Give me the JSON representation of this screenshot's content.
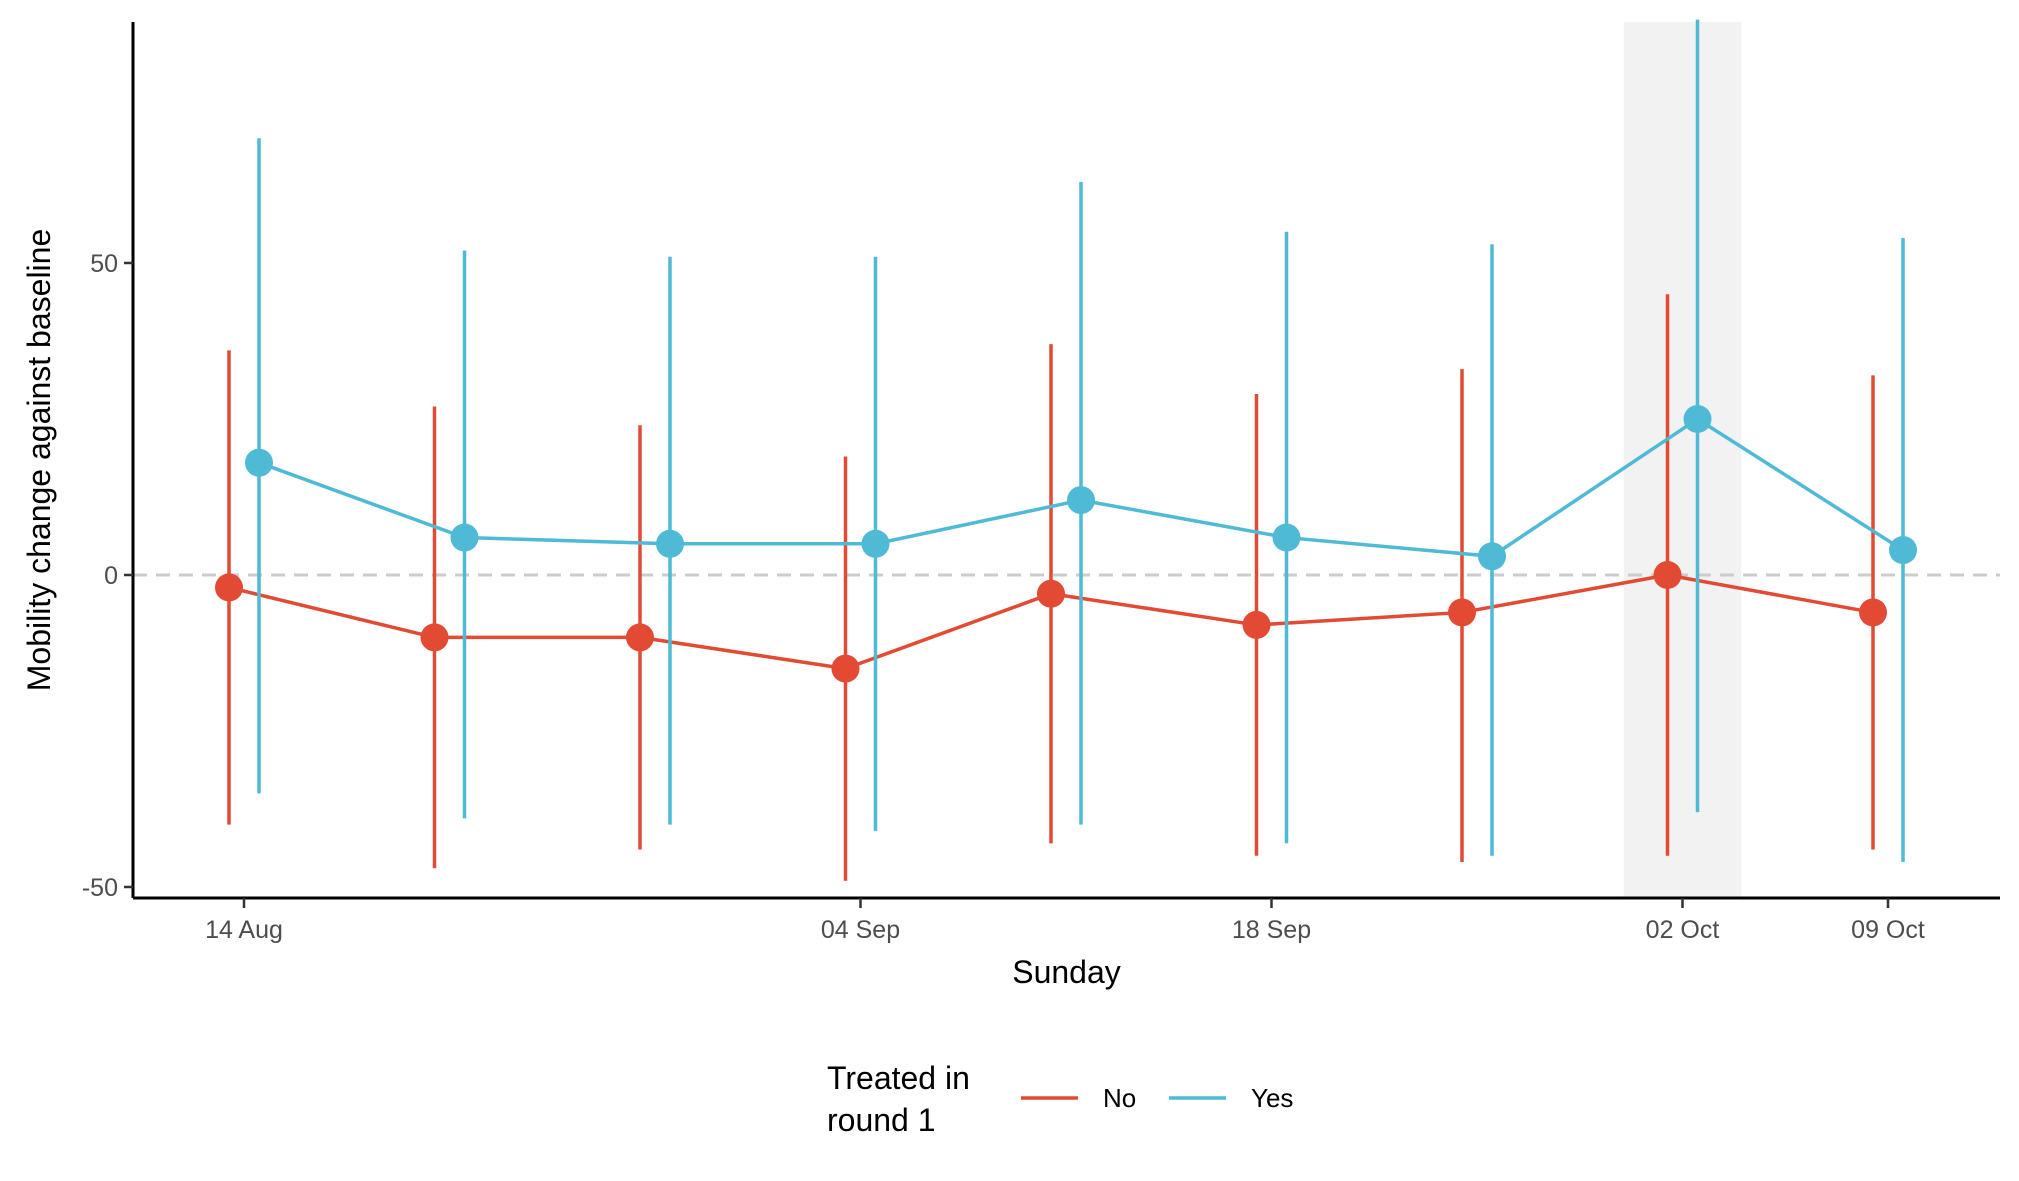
{
  "chart_data": {
    "type": "line",
    "title": "",
    "xlabel": "Sunday",
    "ylabel": "Mobility change against baseline",
    "x_tick_labels": [
      "14 Aug",
      "04 Sep",
      "18 Sep",
      "02 Oct",
      "09 Oct"
    ],
    "x_tick_dates": [
      "2022-08-14",
      "2022-09-04",
      "2022-09-18",
      "2022-10-02",
      "2022-10-09"
    ],
    "y_ticks": [
      -50,
      0,
      50
    ],
    "y_tick_labels": [
      "-50",
      "0",
      "50"
    ],
    "ylim": [
      -52,
      89
    ],
    "reference_line": {
      "y": 0,
      "style": "dashed",
      "color": "#cccccc"
    },
    "highlight_band": {
      "x_start": "2022-09-30",
      "x_end": "2022-10-04",
      "color": "#f2f2f2"
    },
    "legend": {
      "title": "Treated in\nround 1",
      "title_lines": [
        "Treated in",
        "round 1"
      ],
      "position": "bottom"
    },
    "grid": false,
    "series": [
      {
        "name": "No",
        "color": "#e24a33",
        "points": [
          {
            "x": "2022-08-14",
            "y": -2,
            "low": -40,
            "high": 36
          },
          {
            "x": "2022-08-21",
            "y": -10,
            "low": -47,
            "high": 27
          },
          {
            "x": "2022-08-28",
            "y": -10,
            "low": -44,
            "high": 24
          },
          {
            "x": "2022-09-04",
            "y": -15,
            "low": -49,
            "high": 19
          },
          {
            "x": "2022-09-11",
            "y": -3,
            "low": -43,
            "high": 37
          },
          {
            "x": "2022-09-18",
            "y": -8,
            "low": -45,
            "high": 29
          },
          {
            "x": "2022-09-25",
            "y": -6,
            "low": -46,
            "high": 33
          },
          {
            "x": "2022-10-02",
            "y": 0,
            "low": -45,
            "high": 45
          },
          {
            "x": "2022-10-09",
            "y": -6,
            "low": -44,
            "high": 32
          }
        ]
      },
      {
        "name": "Yes",
        "color": "#4fbad6",
        "points": [
          {
            "x": "2022-08-14",
            "y": 18,
            "low": -35,
            "high": 70
          },
          {
            "x": "2022-08-21",
            "y": 6,
            "low": -39,
            "high": 52
          },
          {
            "x": "2022-08-28",
            "y": 5,
            "low": -40,
            "high": 51
          },
          {
            "x": "2022-09-04",
            "y": 5,
            "low": -41,
            "high": 51
          },
          {
            "x": "2022-09-11",
            "y": 12,
            "low": -40,
            "high": 63
          },
          {
            "x": "2022-09-18",
            "y": 6,
            "low": -43,
            "high": 55
          },
          {
            "x": "2022-09-25",
            "y": 3,
            "low": -45,
            "high": 53
          },
          {
            "x": "2022-10-02",
            "y": 25,
            "low": -38,
            "high": 89
          },
          {
            "x": "2022-10-09",
            "y": 4,
            "low": -46,
            "high": 54
          }
        ]
      }
    ]
  }
}
